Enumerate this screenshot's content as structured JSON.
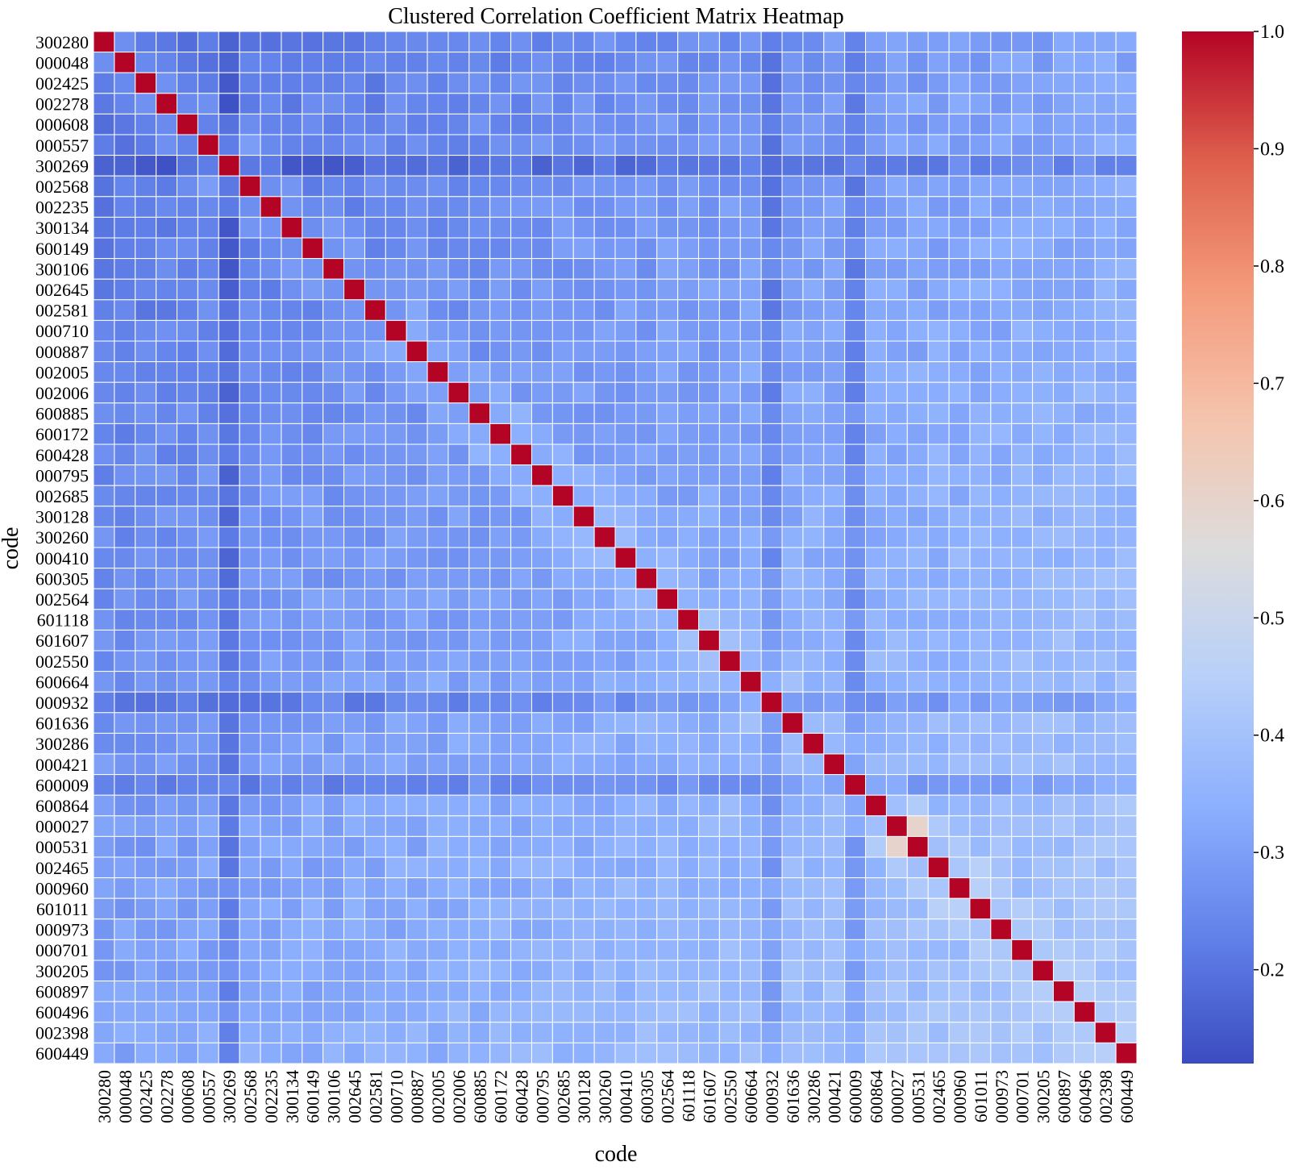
{
  "colors": {
    "low": "#3b4cc0",
    "mid": "#dddcdc",
    "high": "#b40426",
    "cell_border": "#ffffff"
  },
  "chart_data": {
    "type": "heatmap",
    "title": "Clustered Correlation Coefficient Matrix Heatmap",
    "xlabel": "code",
    "ylabel": "code",
    "colormap": "coolwarm",
    "vmin": 0.12,
    "vmax": 1.0,
    "colorbar_ticks": [
      "0.2",
      "0.3",
      "0.4",
      "0.5",
      "0.6",
      "0.7",
      "0.8",
      "0.9",
      "1.0"
    ],
    "codes": [
      "300280",
      "000048",
      "002425",
      "002278",
      "000608",
      "000557",
      "300269",
      "002568",
      "002235",
      "300134",
      "600149",
      "300106",
      "002645",
      "002581",
      "000710",
      "000887",
      "002005",
      "002006",
      "600885",
      "600172",
      "600428",
      "000795",
      "002685",
      "300128",
      "300260",
      "000410",
      "600305",
      "002564",
      "601118",
      "601607",
      "002550",
      "600664",
      "000932",
      "601636",
      "300286",
      "000421",
      "600009",
      "600864",
      "000027",
      "000531",
      "002465",
      "000960",
      "601011",
      "000973",
      "000701",
      "300205",
      "600897",
      "600496",
      "002398",
      "600449"
    ],
    "diagonal": 1.0,
    "upper_triangle_summary": {
      "typical_range": [
        0.2,
        0.45
      ],
      "low_rows": [
        "000932",
        "600009",
        "300269"
      ],
      "peak_off_diagonal": {
        "pair": [
          "000027",
          "000531"
        ],
        "value": 0.6
      }
    }
  }
}
